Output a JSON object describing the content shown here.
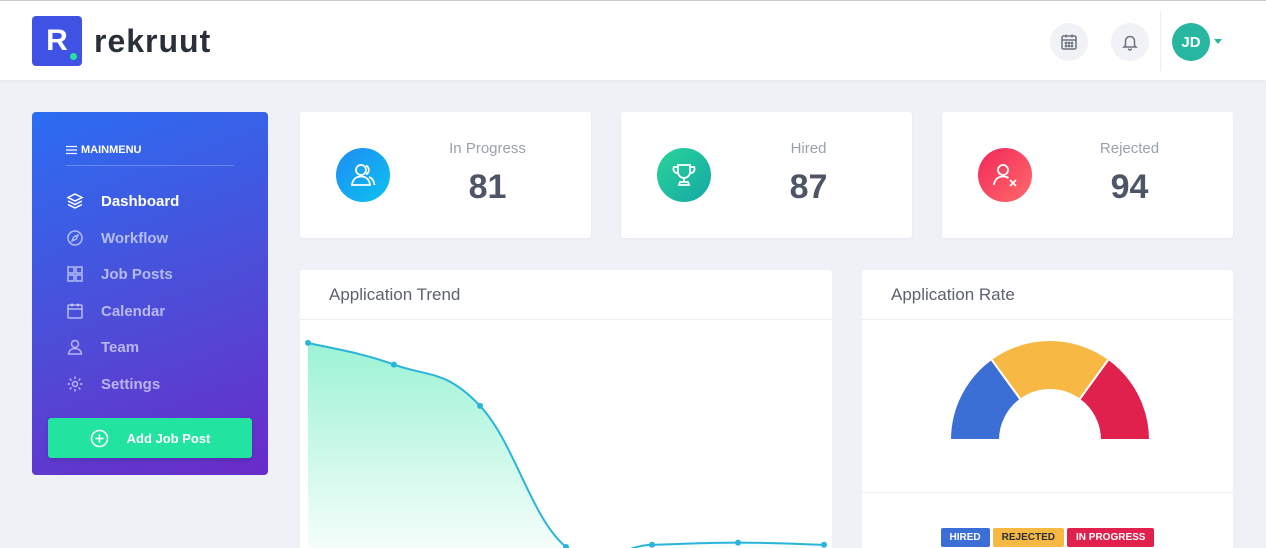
{
  "header": {
    "logo_letter": "R",
    "logo_text": "rekruut",
    "avatar_initials": "JD"
  },
  "sidebar": {
    "menu_title": "MAINMENU",
    "items": [
      {
        "label": "Dashboard",
        "icon": "layers-icon"
      },
      {
        "label": "Workflow",
        "icon": "compass-icon"
      },
      {
        "label": "Job Posts",
        "icon": "grid-icon"
      },
      {
        "label": "Calendar",
        "icon": "calendar-icon"
      },
      {
        "label": "Team",
        "icon": "user-icon"
      },
      {
        "label": "Settings",
        "icon": "gear-icon"
      }
    ],
    "add_button": "Add Job Post"
  },
  "stats": [
    {
      "label": "In Progress",
      "value": "81",
      "color": "#0f9ef2"
    },
    {
      "label": "Hired",
      "value": "87",
      "color": "#22c3a0"
    },
    {
      "label": "Rejected",
      "value": "94",
      "color": "#f0355a"
    }
  ],
  "trend": {
    "title": "Application Trend",
    "chart_data": {
      "type": "area",
      "values": [
        100,
        90,
        71,
        6,
        7,
        8,
        7
      ],
      "ylim": [
        0,
        105
      ]
    }
  },
  "rate": {
    "title": "Application Rate",
    "chart_data": {
      "type": "pie",
      "series": [
        {
          "name": "HIRED",
          "value": 30,
          "color": "#3b6fd6"
        },
        {
          "name": "REJECTED",
          "value": 40,
          "color": "#f7b844"
        },
        {
          "name": "IN PROGRESS",
          "value": 30,
          "color": "#e0204d"
        }
      ]
    }
  },
  "colors": {
    "accent": "#3f52e3",
    "green": "#22e4a0"
  }
}
